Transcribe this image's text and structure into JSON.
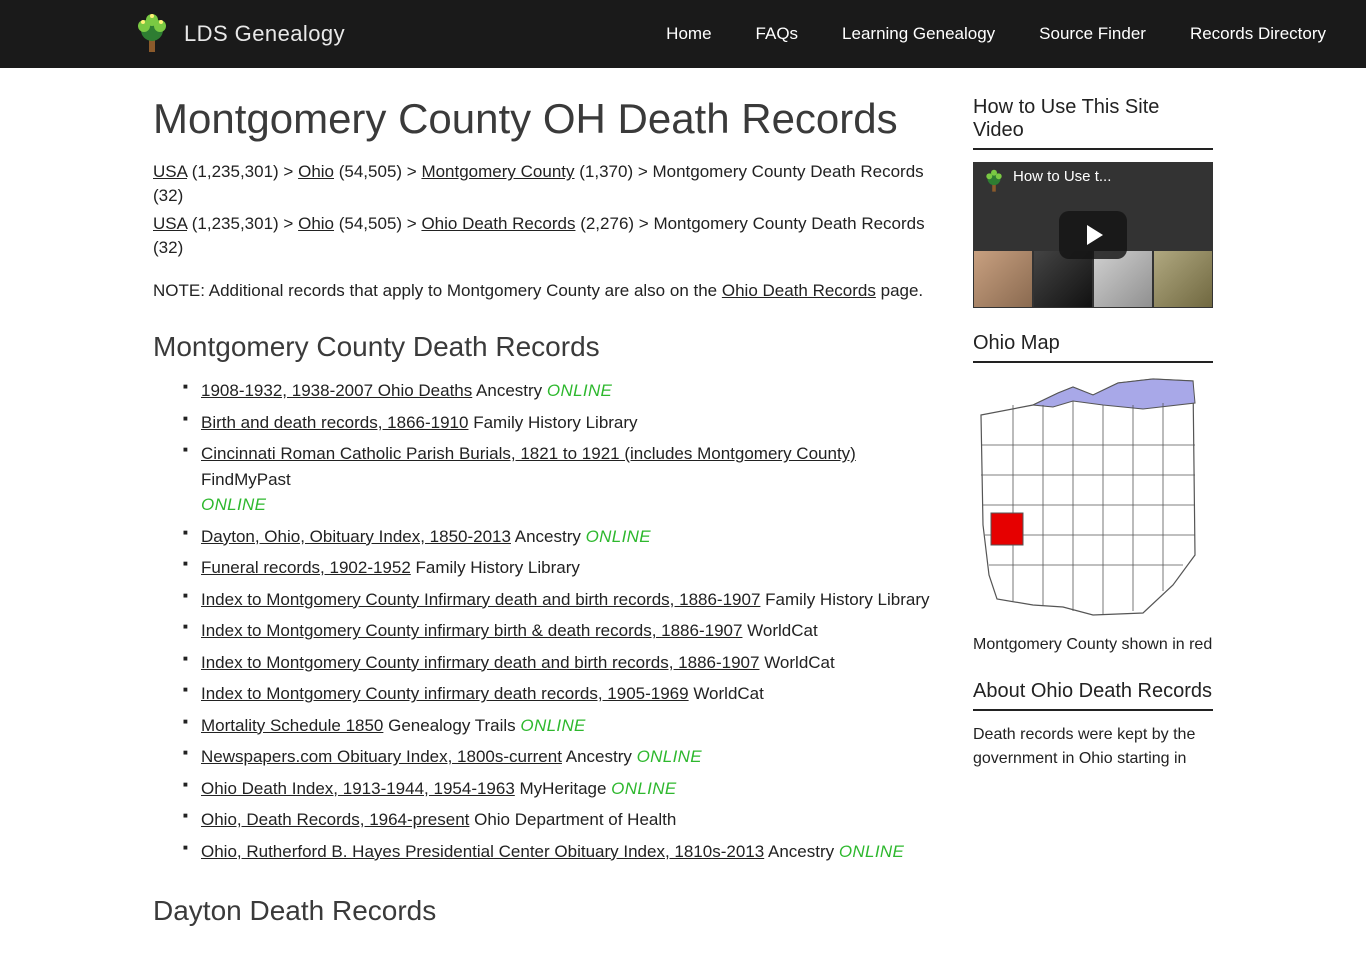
{
  "site": {
    "name": "LDS Genealogy"
  },
  "nav": {
    "home": "Home",
    "faqs": "FAQs",
    "learning": "Learning Genealogy",
    "finder": "Source Finder",
    "directory": "Records Directory"
  },
  "page": {
    "title": "Montgomery County OH Death Records",
    "note_prefix": "NOTE: Additional records that apply to Montgomery County are also on the ",
    "note_link": "Ohio Death Records",
    "note_suffix": " page.",
    "section_heading": "Montgomery County Death Records",
    "section_heading_2": "Dayton Death Records"
  },
  "crumb1": {
    "usa": "USA",
    "usa_n": " (1,235,301) > ",
    "ohio": "Ohio",
    "ohio_n": " (54,505) > ",
    "cty": "Montgomery County",
    "cty_n": " (1,370) > ",
    "tail": "Montgomery County Death Records (32)"
  },
  "crumb2": {
    "usa": "USA",
    "usa_n": " (1,235,301) > ",
    "ohio": "Ohio",
    "ohio_n": " (54,505) > ",
    "odr": "Ohio Death Records",
    "odr_n": " (2,276) > ",
    "tail": "Montgomery County Death Records (32)"
  },
  "records": [
    {
      "title": "1908-1932, 1938-2007 Ohio Deaths",
      "source": " Ancestry ",
      "online": true
    },
    {
      "title": "Birth and death records, 1866-1910",
      "source": " Family History Library",
      "online": false
    },
    {
      "title": "Cincinnati Roman Catholic Parish Burials, 1821 to 1921 (includes Montgomery County)",
      "source": " FindMyPast ",
      "online": true,
      "wrap": true
    },
    {
      "title": "Dayton, Ohio, Obituary Index, 1850-2013",
      "source": " Ancestry ",
      "online": true
    },
    {
      "title": "Funeral records, 1902-1952",
      "source": " Family History Library",
      "online": false
    },
    {
      "title": "Index to Montgomery County Infirmary death and birth records, 1886-1907",
      "source": " Family History Library",
      "online": false
    },
    {
      "title": "Index to Montgomery County infirmary birth & death records, 1886-1907",
      "source": " WorldCat",
      "online": false
    },
    {
      "title": "Index to Montgomery County infirmary death and birth records, 1886-1907",
      "source": " WorldCat",
      "online": false
    },
    {
      "title": "Index to Montgomery County infirmary death records, 1905-1969",
      "source": " WorldCat",
      "online": false
    },
    {
      "title": "Mortality Schedule 1850",
      "source": " Genealogy Trails ",
      "online": true
    },
    {
      "title": "Newspapers.com Obituary Index, 1800s-current",
      "source": " Ancestry ",
      "online": true
    },
    {
      "title": "Ohio Death Index, 1913-1944, 1954-1963",
      "source": " MyHeritage ",
      "online": true
    },
    {
      "title": "Ohio, Death Records, 1964-present",
      "source": " Ohio Department of Health",
      "online": false
    },
    {
      "title": "Ohio, Rutherford B. Hayes Presidential Center Obituary Index, 1810s-2013",
      "source": " Ancestry ",
      "online": true
    }
  ],
  "online_label": "ONLINE",
  "sidebar": {
    "video_heading": "How to Use This Site Video",
    "video_title": "How to Use t...",
    "map_heading": "Ohio Map",
    "map_caption": "Montgomery County shown in red",
    "about_heading": "About Ohio Death Records",
    "about_text": "Death records were kept by the government in Ohio starting in"
  },
  "colors": {
    "topbar_bg": "#1a1a1a",
    "link_color": "#222222",
    "online_color": "#2eb82e",
    "highlight_county": "#e60000",
    "lake_color": "#a8a8e8",
    "map_stroke": "#555555",
    "logo_green_light": "#7ac943",
    "logo_green_dark": "#2e7d32"
  }
}
